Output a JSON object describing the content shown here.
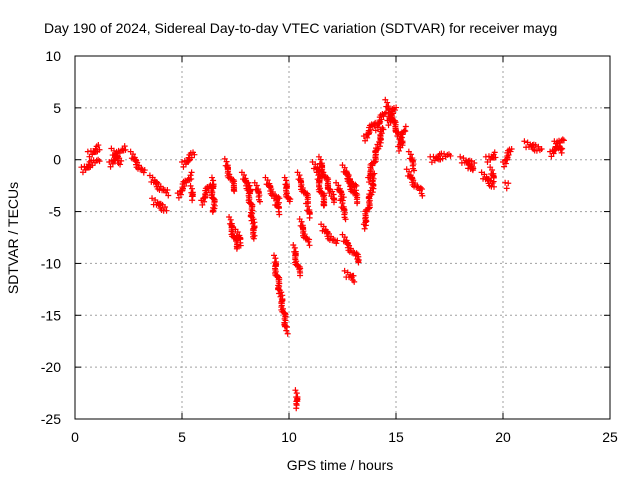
{
  "chart_data": {
    "type": "scatter",
    "title": "Day 190 of 2024, Sidereal Day-to-day VTEC variation (SDTVAR) for receiver mayg",
    "xlabel": "GPS time / hours",
    "ylabel": "SDTVAR / TECUs",
    "xlim": [
      0,
      25
    ],
    "ylim": [
      -25,
      10
    ],
    "xticks": [
      0,
      5,
      10,
      15,
      20,
      25
    ],
    "xtick_labels": [
      "0",
      "5",
      "10",
      "15",
      "20",
      "25"
    ],
    "yticks": [
      -25,
      -20,
      -15,
      -10,
      -5,
      0,
      5,
      10
    ],
    "ytick_labels": [
      "-25",
      "-20",
      "-15",
      "-10",
      "-5",
      "0",
      "5",
      "10"
    ],
    "grid": true,
    "marker": "+",
    "color": "#ff0000",
    "series": [
      {
        "name": "SDTVAR",
        "segments": [
          {
            "x": [
              0.3,
              1.1
            ],
            "y": [
              -1.0,
              0.0
            ]
          },
          {
            "x": [
              0.6,
              1.2
            ],
            "y": [
              0.5,
              1.2
            ]
          },
          {
            "x": [
              1.6,
              2.3
            ],
            "y": [
              -0.5,
              1.2
            ]
          },
          {
            "x": [
              1.7,
              2.2
            ],
            "y": [
              0.8,
              -0.3
            ]
          },
          {
            "x": [
              2.6,
              3.2
            ],
            "y": [
              0.5,
              -1.2
            ]
          },
          {
            "x": [
              3.5,
              4.3
            ],
            "y": [
              -1.8,
              -3.2
            ]
          },
          {
            "x": [
              3.6,
              4.3
            ],
            "y": [
              -4.0,
              -4.8
            ]
          },
          {
            "x": [
              4.8,
              5.4
            ],
            "y": [
              -3.5,
              -1.5
            ]
          },
          {
            "x": [
              5.0,
              5.6
            ],
            "y": [
              -0.5,
              0.6
            ]
          },
          {
            "x": [
              5.4,
              5.5
            ],
            "y": [
              -2.8,
              -3.8
            ]
          },
          {
            "x": [
              5.9,
              6.3
            ],
            "y": [
              -4.2,
              -2.5
            ]
          },
          {
            "x": [
              6.4,
              6.5
            ],
            "y": [
              -2.0,
              -5.0
            ]
          },
          {
            "x": [
              7.0,
              7.5
            ],
            "y": [
              -0.2,
              -3.0
            ]
          },
          {
            "x": [
              7.2,
              7.6
            ],
            "y": [
              -5.8,
              -8.5
            ]
          },
          {
            "x": [
              7.5,
              7.8
            ],
            "y": [
              -7.0,
              -8.0
            ]
          },
          {
            "x": [
              7.8,
              8.2
            ],
            "y": [
              -1.5,
              -3.0
            ]
          },
          {
            "x": [
              8.1,
              8.4
            ],
            "y": [
              -2.5,
              -7.5
            ]
          },
          {
            "x": [
              8.4,
              8.7
            ],
            "y": [
              -2.5,
              -3.8
            ]
          },
          {
            "x": [
              8.9,
              9.5
            ],
            "y": [
              -2.0,
              -4.0
            ]
          },
          {
            "x": [
              9.3,
              9.6
            ],
            "y": [
              -4.0,
              -5.0
            ]
          },
          {
            "x": [
              9.8,
              10.0
            ],
            "y": [
              -2.0,
              -4.0
            ]
          },
          {
            "x": [
              9.3,
              9.9
            ],
            "y": [
              -9.5,
              -16.5
            ]
          },
          {
            "x": [
              10.2,
              10.5
            ],
            "y": [
              -8.5,
              -11.0
            ]
          },
          {
            "x": [
              10.3,
              10.4
            ],
            "y": [
              -22.5,
              -23.8
            ]
          },
          {
            "x": [
              10.4,
              10.9
            ],
            "y": [
              -1.5,
              -4.0
            ]
          },
          {
            "x": [
              10.5,
              10.9
            ],
            "y": [
              -6.0,
              -8.0
            ]
          },
          {
            "x": [
              10.8,
              11.0
            ],
            "y": [
              -4.5,
              -5.5
            ]
          },
          {
            "x": [
              11.1,
              11.6
            ],
            "y": [
              -0.5,
              -1.5
            ]
          },
          {
            "x": [
              11.4,
              12.1
            ],
            "y": [
              0.0,
              -4.0
            ]
          },
          {
            "x": [
              11.3,
              11.7
            ],
            "y": [
              -1.5,
              -4.5
            ]
          },
          {
            "x": [
              11.5,
              12.2
            ],
            "y": [
              -6.5,
              -8.0
            ]
          },
          {
            "x": [
              12.2,
              12.6
            ],
            "y": [
              -2.5,
              -3.8
            ]
          },
          {
            "x": [
              12.4,
              12.7
            ],
            "y": [
              -4.2,
              -5.5
            ]
          },
          {
            "x": [
              12.5,
              13.1
            ],
            "y": [
              -0.8,
              -2.8
            ]
          },
          {
            "x": [
              12.7,
              13.2
            ],
            "y": [
              -1.5,
              -4.0
            ]
          },
          {
            "x": [
              12.5,
              13.3
            ],
            "y": [
              -7.5,
              -9.8
            ]
          },
          {
            "x": [
              12.6,
              13.1
            ],
            "y": [
              -11.0,
              -11.5
            ]
          },
          {
            "x": [
              13.5,
              14.0
            ],
            "y": [
              -6.5,
              -1.5
            ]
          },
          {
            "x": [
              13.5,
              14.0
            ],
            "y": [
              2.0,
              3.5
            ]
          },
          {
            "x": [
              13.7,
              14.4
            ],
            "y": [
              -2.0,
              3.0
            ]
          },
          {
            "x": [
              14.0,
              14.5
            ],
            "y": [
              3.0,
              4.5
            ]
          },
          {
            "x": [
              14.5,
              15.3
            ],
            "y": [
              5.5,
              1.5
            ]
          },
          {
            "x": [
              14.6,
              15.0
            ],
            "y": [
              3.5,
              5.0
            ]
          },
          {
            "x": [
              15.1,
              15.4
            ],
            "y": [
              1.0,
              3.0
            ]
          },
          {
            "x": [
              15.5,
              16.2
            ],
            "y": [
              -1.2,
              -3.2
            ]
          },
          {
            "x": [
              15.6,
              15.9
            ],
            "y": [
              0.5,
              -0.8
            ]
          },
          {
            "x": [
              16.6,
              17.5
            ],
            "y": [
              0.0,
              0.5
            ]
          },
          {
            "x": [
              18.0,
              18.7
            ],
            "y": [
              0.0,
              -0.5
            ]
          },
          {
            "x": [
              18.3,
              18.6
            ],
            "y": [
              -0.5,
              -1.0
            ]
          },
          {
            "x": [
              19.0,
              19.6
            ],
            "y": [
              -1.5,
              -2.5
            ]
          },
          {
            "x": [
              19.2,
              19.7
            ],
            "y": [
              0.0,
              0.5
            ]
          },
          {
            "x": [
              19.4,
              19.6
            ],
            "y": [
              -1.0,
              -2.0
            ]
          },
          {
            "x": [
              20.0,
              20.4
            ],
            "y": [
              -0.5,
              1.0
            ]
          },
          {
            "x": [
              20.1,
              20.2
            ],
            "y": [
              -2.5,
              -2.5
            ]
          },
          {
            "x": [
              21.0,
              21.8
            ],
            "y": [
              1.5,
              1.0
            ]
          },
          {
            "x": [
              22.2,
              22.8
            ],
            "y": [
              0.5,
              2.0
            ]
          },
          {
            "x": [
              22.4,
              22.8
            ],
            "y": [
              1.5,
              0.8
            ]
          }
        ]
      }
    ]
  }
}
